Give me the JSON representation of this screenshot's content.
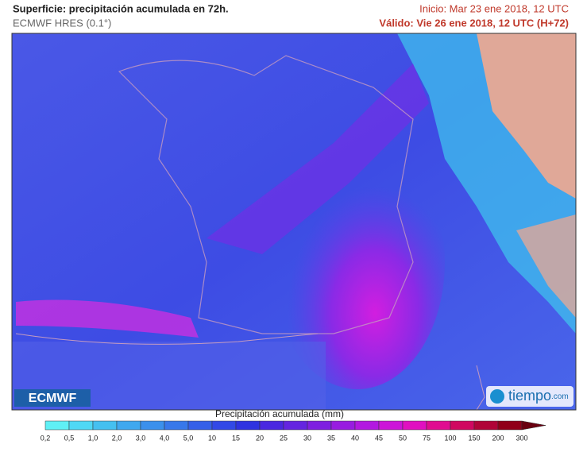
{
  "header": {
    "title": "Superficie: precipitación acumulada en 72h.",
    "model": "ECMWF HRES (0.1°)",
    "init": "Inicio: Mar 23 ene 2018, 12 UTC",
    "valid": "Válido: Vie 26 ene 2018, 12 UTC (H+72)"
  },
  "logos": {
    "left": "ECMWF",
    "right": "tiempo",
    "right_suffix": ".com"
  },
  "legend": {
    "title": "Precipitación acumulada (mm)",
    "labels": [
      "0,2",
      "0,5",
      "1,0",
      "2,0",
      "3,0",
      "4,0",
      "5,0",
      "10",
      "15",
      "20",
      "25",
      "30",
      "35",
      "40",
      "45",
      "50",
      "75",
      "100",
      "150",
      "200",
      "300"
    ]
  }
}
